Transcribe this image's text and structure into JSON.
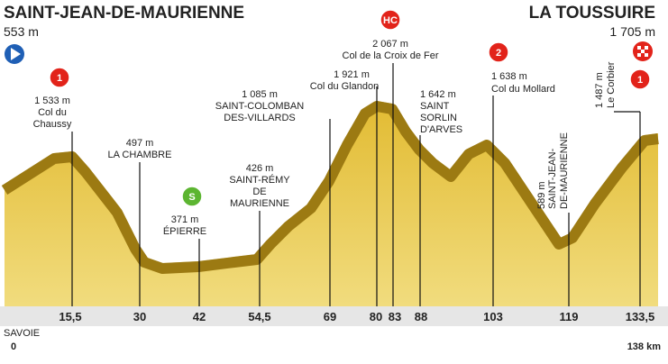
{
  "header": {
    "start": {
      "name": "SAINT-JEAN-DE-MAURIENNE",
      "altitude": "553 m"
    },
    "finish": {
      "name": "LA TOUSSUIRE",
      "altitude": "1 705 m"
    }
  },
  "points": [
    {
      "badge": "1",
      "lines": [
        "1 533 m",
        "Col du",
        "Chaussy"
      ],
      "km": "15,5"
    },
    {
      "lines": [
        "497 m",
        "LA CHAMBRE"
      ],
      "km": "30"
    },
    {
      "badge": "S",
      "lines": [
        "371 m",
        "ÉPIERRE"
      ],
      "km": "42"
    },
    {
      "lines": [
        "426 m",
        "SAINT-RÉMY",
        "DE",
        "MAURIENNE"
      ],
      "km": "54,5"
    },
    {
      "lines": [
        "1 085 m",
        "SAINT-COLOMBAN",
        "DES-VILLARDS"
      ],
      "km": "69"
    },
    {
      "lines": [
        "1 921 m",
        "Col du Glandon"
      ],
      "km": "80"
    },
    {
      "badge": "HC",
      "lines": [
        "2 067 m",
        "Col de la Croix de Fer"
      ],
      "km": "83"
    },
    {
      "lines": [
        "1 642 m",
        "SAINT",
        "SORLIN",
        "D'ARVES"
      ],
      "km": "88"
    },
    {
      "badge": "2",
      "lines": [
        "1 638 m",
        "Col du Mollard"
      ],
      "km": "103"
    },
    {
      "lines": [
        "589 m",
        "SAINT-JEAN-",
        "DE-MAURIENNE"
      ],
      "km": "119"
    },
    {
      "badge": "1",
      "lines": [
        "1 487 m",
        "Le Corbier"
      ],
      "km": "133,5"
    }
  ],
  "footer": {
    "region": "SAVOIE",
    "start_km": "0",
    "total": "138 km"
  }
}
